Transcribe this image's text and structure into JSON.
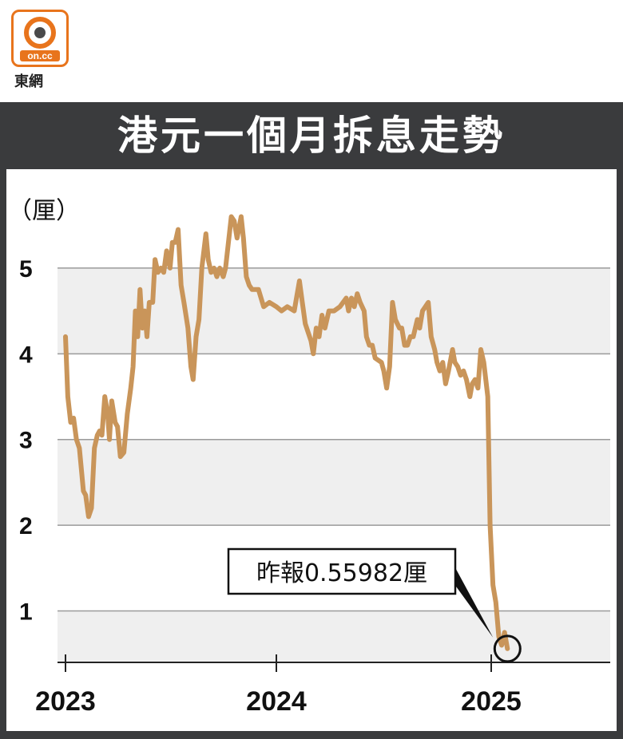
{
  "logo": {
    "brand": "on.cc",
    "name": "東網"
  },
  "chart_data": {
    "type": "line",
    "title": "港元一個月拆息走勢",
    "ylabel": "（厘）",
    "xlabel": "",
    "ylim": [
      0.4,
      5.8
    ],
    "y_ticks": [
      1,
      2,
      3,
      4,
      5
    ],
    "x_ticks": [
      "2023",
      "2024",
      "2025"
    ],
    "grid": true,
    "line_color": "#c9955a",
    "annotation": {
      "text": "昨報0.55982厘",
      "value": 0.55982
    },
    "series": [
      {
        "values": [
          [
            "2023-01-01",
            4.2
          ],
          [
            "2023-01-05",
            3.5
          ],
          [
            "2023-01-10",
            3.2
          ],
          [
            "2023-01-15",
            3.25
          ],
          [
            "2023-01-20",
            3.0
          ],
          [
            "2023-01-25",
            2.9
          ],
          [
            "2023-02-01",
            2.4
          ],
          [
            "2023-02-05",
            2.35
          ],
          [
            "2023-02-10",
            2.1
          ],
          [
            "2023-02-15",
            2.2
          ],
          [
            "2023-02-20",
            2.9
          ],
          [
            "2023-02-25",
            3.05
          ],
          [
            "2023-03-01",
            3.1
          ],
          [
            "2023-03-05",
            3.05
          ],
          [
            "2023-03-10",
            3.5
          ],
          [
            "2023-03-15",
            3.3
          ],
          [
            "2023-03-18",
            3.0
          ],
          [
            "2023-03-22",
            3.45
          ],
          [
            "2023-03-28",
            3.2
          ],
          [
            "2023-04-01",
            3.15
          ],
          [
            "2023-04-06",
            2.8
          ],
          [
            "2023-04-12",
            2.85
          ],
          [
            "2023-04-18",
            3.3
          ],
          [
            "2023-04-24",
            3.6
          ],
          [
            "2023-04-28",
            3.85
          ],
          [
            "2023-05-02",
            4.5
          ],
          [
            "2023-05-06",
            4.2
          ],
          [
            "2023-05-10",
            4.75
          ],
          [
            "2023-05-14",
            4.3
          ],
          [
            "2023-05-18",
            4.5
          ],
          [
            "2023-05-22",
            4.2
          ],
          [
            "2023-05-26",
            4.6
          ],
          [
            "2023-06-01",
            4.6
          ],
          [
            "2023-06-05",
            5.1
          ],
          [
            "2023-06-10",
            4.95
          ],
          [
            "2023-06-15",
            5.0
          ],
          [
            "2023-06-20",
            4.95
          ],
          [
            "2023-06-25",
            5.2
          ],
          [
            "2023-07-01",
            5.0
          ],
          [
            "2023-07-05",
            5.3
          ],
          [
            "2023-07-10",
            5.3
          ],
          [
            "2023-07-15",
            5.45
          ],
          [
            "2023-07-20",
            4.8
          ],
          [
            "2023-07-25",
            4.6
          ],
          [
            "2023-08-01",
            4.3
          ],
          [
            "2023-08-06",
            3.85
          ],
          [
            "2023-08-10",
            3.7
          ],
          [
            "2023-08-15",
            4.2
          ],
          [
            "2023-08-20",
            4.4
          ],
          [
            "2023-08-25",
            5.0
          ],
          [
            "2023-09-01",
            5.4
          ],
          [
            "2023-09-05",
            5.1
          ],
          [
            "2023-09-10",
            4.95
          ],
          [
            "2023-09-15",
            5.0
          ],
          [
            "2023-09-20",
            4.9
          ],
          [
            "2023-09-25",
            5.0
          ],
          [
            "2023-10-01",
            4.9
          ],
          [
            "2023-10-05",
            5.0
          ],
          [
            "2023-10-10",
            5.3
          ],
          [
            "2023-10-15",
            5.6
          ],
          [
            "2023-10-20",
            5.55
          ],
          [
            "2023-10-25",
            5.35
          ],
          [
            "2023-11-01",
            5.6
          ],
          [
            "2023-11-05",
            5.35
          ],
          [
            "2023-11-10",
            4.9
          ],
          [
            "2023-11-15",
            4.8
          ],
          [
            "2023-11-20",
            4.75
          ],
          [
            "2023-12-01",
            4.75
          ],
          [
            "2023-12-10",
            4.55
          ],
          [
            "2023-12-20",
            4.6
          ],
          [
            "2024-01-01",
            4.55
          ],
          [
            "2024-01-10",
            4.5
          ],
          [
            "2024-01-20",
            4.55
          ],
          [
            "2024-02-01",
            4.5
          ],
          [
            "2024-02-10",
            4.85
          ],
          [
            "2024-02-15",
            4.6
          ],
          [
            "2024-02-20",
            4.35
          ],
          [
            "2024-03-01",
            4.15
          ],
          [
            "2024-03-05",
            4.0
          ],
          [
            "2024-03-10",
            4.3
          ],
          [
            "2024-03-15",
            4.2
          ],
          [
            "2024-03-20",
            4.45
          ],
          [
            "2024-03-25",
            4.3
          ],
          [
            "2024-04-01",
            4.5
          ],
          [
            "2024-04-10",
            4.5
          ],
          [
            "2024-04-20",
            4.55
          ],
          [
            "2024-05-01",
            4.65
          ],
          [
            "2024-05-05",
            4.5
          ],
          [
            "2024-05-10",
            4.65
          ],
          [
            "2024-05-15",
            4.55
          ],
          [
            "2024-05-20",
            4.7
          ],
          [
            "2024-05-25",
            4.6
          ],
          [
            "2024-06-01",
            4.5
          ],
          [
            "2024-06-05",
            4.2
          ],
          [
            "2024-06-10",
            4.1
          ],
          [
            "2024-06-15",
            4.1
          ],
          [
            "2024-06-20",
            3.95
          ],
          [
            "2024-07-01",
            3.9
          ],
          [
            "2024-07-05",
            3.8
          ],
          [
            "2024-07-10",
            3.6
          ],
          [
            "2024-07-15",
            3.85
          ],
          [
            "2024-07-20",
            4.6
          ],
          [
            "2024-07-25",
            4.4
          ],
          [
            "2024-08-01",
            4.3
          ],
          [
            "2024-08-05",
            4.3
          ],
          [
            "2024-08-10",
            4.1
          ],
          [
            "2024-08-15",
            4.1
          ],
          [
            "2024-08-20",
            4.2
          ],
          [
            "2024-08-25",
            4.2
          ],
          [
            "2024-09-01",
            4.4
          ],
          [
            "2024-09-05",
            4.3
          ],
          [
            "2024-09-10",
            4.5
          ],
          [
            "2024-09-15",
            4.55
          ],
          [
            "2024-09-20",
            4.6
          ],
          [
            "2024-09-25",
            4.2
          ],
          [
            "2024-10-01",
            4.05
          ],
          [
            "2024-10-05",
            3.9
          ],
          [
            "2024-10-10",
            3.8
          ],
          [
            "2024-10-15",
            3.9
          ],
          [
            "2024-10-20",
            3.65
          ],
          [
            "2024-10-25",
            3.8
          ],
          [
            "2024-11-01",
            4.05
          ],
          [
            "2024-11-05",
            3.9
          ],
          [
            "2024-11-10",
            3.85
          ],
          [
            "2024-11-15",
            3.75
          ],
          [
            "2024-11-20",
            3.8
          ],
          [
            "2024-11-25",
            3.7
          ],
          [
            "2024-12-01",
            3.5
          ],
          [
            "2024-12-05",
            3.65
          ],
          [
            "2024-12-10",
            3.7
          ],
          [
            "2024-12-15",
            3.6
          ],
          [
            "2024-12-20",
            4.05
          ],
          [
            "2024-12-25",
            3.9
          ],
          [
            "2025-01-01",
            3.5
          ],
          [
            "2025-01-05",
            2.0
          ],
          [
            "2025-01-10",
            1.3
          ],
          [
            "2025-01-15",
            1.1
          ],
          [
            "2025-01-20",
            0.7
          ],
          [
            "2025-01-25",
            0.6
          ],
          [
            "2025-01-30",
            0.75
          ],
          [
            "2025-02-04",
            0.56
          ]
        ]
      }
    ]
  }
}
